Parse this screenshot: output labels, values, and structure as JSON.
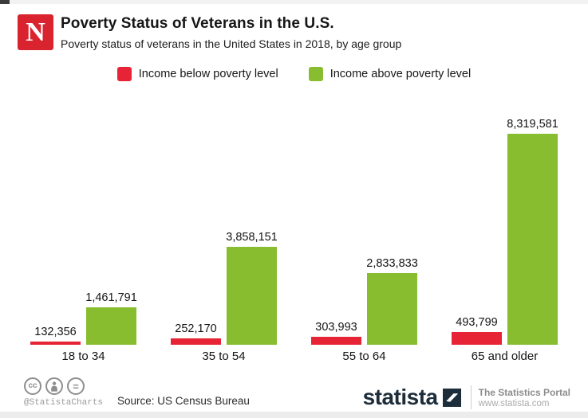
{
  "header": {
    "logo_letter": "N",
    "title": "Poverty Status of Veterans in the U.S.",
    "subtitle": "Poverty status of veterans in the United States in 2018, by age group"
  },
  "legend": {
    "below": {
      "label": "Income below poverty level",
      "color": "#e62436"
    },
    "above": {
      "label": "Income above poverty level",
      "color": "#87bd2f"
    }
  },
  "chart_data": {
    "type": "bar",
    "title": "Poverty Status of Veterans in the U.S.",
    "subtitle": "Poverty status of veterans in the United States in 2018, by age group",
    "categories": [
      "18 to 34",
      "35 to 54",
      "55 to 64",
      "65 and older"
    ],
    "series": [
      {
        "name": "Income below poverty level",
        "color": "#e62436",
        "values": [
          132356,
          252170,
          303993,
          493799
        ],
        "labels": [
          "132,356",
          "252,170",
          "303,993",
          "493,799"
        ]
      },
      {
        "name": "Income above poverty level",
        "color": "#87bd2f",
        "values": [
          1461791,
          3858151,
          2833833,
          8319581
        ],
        "labels": [
          "1,461,791",
          "3,858,151",
          "2,833,833",
          "8,319,581"
        ]
      }
    ],
    "ymax": 8319581,
    "grid": false,
    "legend_position": "top",
    "data_labels": true
  },
  "footer": {
    "license": {
      "cc_text": "cc",
      "equals_text": "="
    },
    "handle": "@StatistaCharts",
    "source": "Source: US Census Bureau",
    "brand": "statista",
    "tagline": "The Statistics Portal",
    "website": "www.statista.com"
  },
  "colors": {
    "bar_red": "#e62436",
    "bar_green": "#87bd2f",
    "logo_red": "#d9232e",
    "statista_navy": "#1d2d3a",
    "text": "#161616"
  }
}
